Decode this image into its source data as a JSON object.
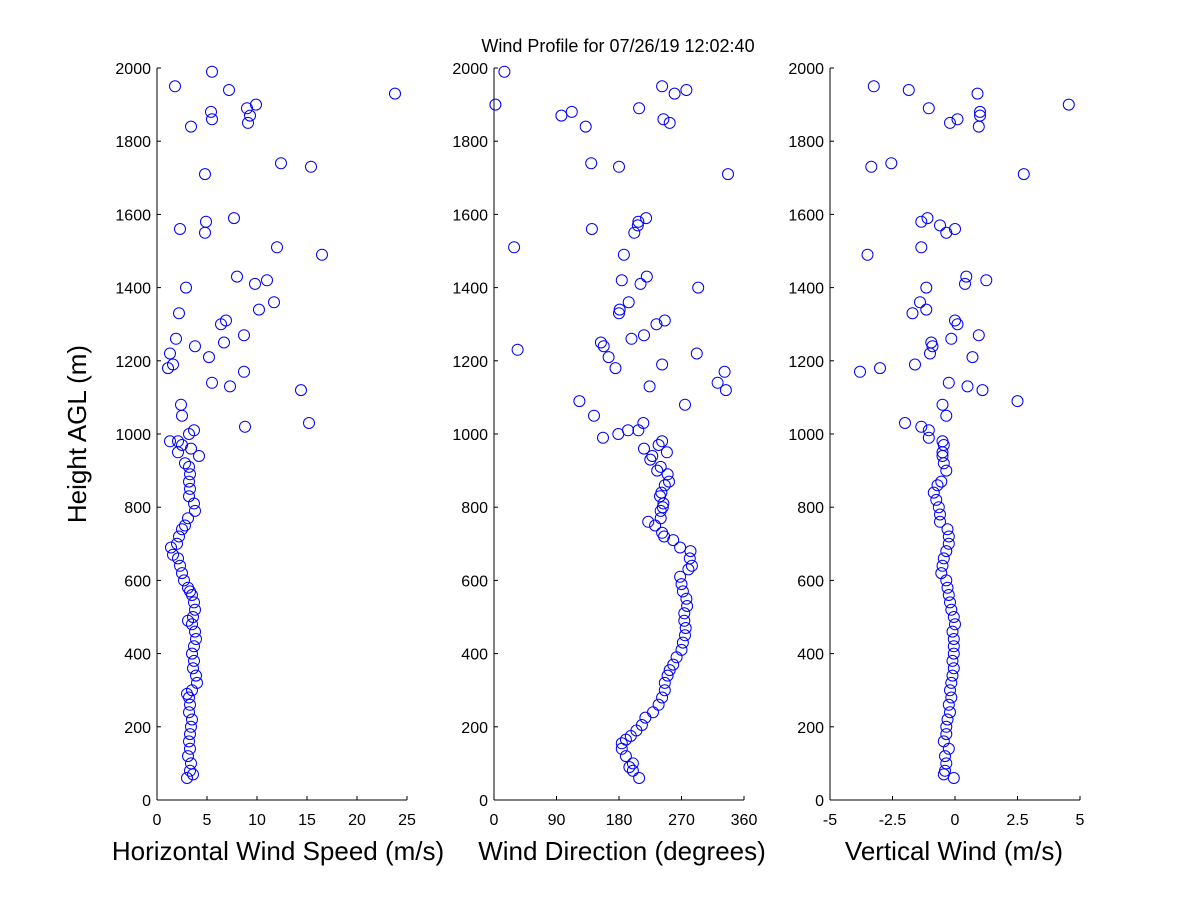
{
  "title": "Wind Profile for  07/26/19 12:02:40",
  "chart_data": [
    {
      "type": "scatter",
      "xlabel": "Horizontal Wind Speed (m/s)",
      "ylabel": "Height AGL (m)",
      "xlim": [
        0,
        25
      ],
      "ylim": [
        0,
        2000
      ],
      "xticks": [
        "0",
        "5",
        "10",
        "15",
        "20",
        "25"
      ],
      "yticks": [
        "0",
        "200",
        "400",
        "600",
        "800",
        "1000",
        "1200",
        "1400",
        "1600",
        "1800",
        "2000"
      ],
      "grid": false,
      "points": [
        [
          3.0,
          60
        ],
        [
          3.6,
          70
        ],
        [
          3.3,
          80
        ],
        [
          3.4,
          100
        ],
        [
          3.1,
          120
        ],
        [
          3.3,
          140
        ],
        [
          3.2,
          160
        ],
        [
          3.3,
          180
        ],
        [
          3.4,
          200
        ],
        [
          3.5,
          220
        ],
        [
          3.2,
          240
        ],
        [
          3.3,
          260
        ],
        [
          3.2,
          280
        ],
        [
          3.0,
          290
        ],
        [
          3.5,
          300
        ],
        [
          4.0,
          320
        ],
        [
          3.9,
          340
        ],
        [
          3.6,
          360
        ],
        [
          3.7,
          380
        ],
        [
          3.5,
          400
        ],
        [
          3.7,
          420
        ],
        [
          3.9,
          440
        ],
        [
          3.8,
          460
        ],
        [
          3.5,
          480
        ],
        [
          3.1,
          490
        ],
        [
          3.6,
          500
        ],
        [
          3.8,
          520
        ],
        [
          3.7,
          540
        ],
        [
          3.5,
          560
        ],
        [
          3.3,
          570
        ],
        [
          3.1,
          580
        ],
        [
          2.7,
          600
        ],
        [
          2.5,
          620
        ],
        [
          2.3,
          640
        ],
        [
          2.1,
          660
        ],
        [
          1.6,
          670
        ],
        [
          1.4,
          690
        ],
        [
          2.0,
          700
        ],
        [
          2.2,
          720
        ],
        [
          2.5,
          740
        ],
        [
          2.8,
          750
        ],
        [
          3.1,
          770
        ],
        [
          3.8,
          790
        ],
        [
          3.7,
          810
        ],
        [
          3.2,
          830
        ],
        [
          3.3,
          850
        ],
        [
          3.2,
          870
        ],
        [
          3.3,
          890
        ],
        [
          3.2,
          910
        ],
        [
          2.8,
          920
        ],
        [
          4.2,
          940
        ],
        [
          2.1,
          950
        ],
        [
          3.4,
          960
        ],
        [
          2.5,
          970
        ],
        [
          2.1,
          980
        ],
        [
          1.3,
          980
        ],
        [
          3.2,
          1000
        ],
        [
          3.7,
          1010
        ],
        [
          8.8,
          1020
        ],
        [
          15.2,
          1030
        ],
        [
          2.5,
          1050
        ],
        [
          2.4,
          1080
        ],
        [
          14.4,
          1120
        ],
        [
          5.5,
          1140
        ],
        [
          7.3,
          1130
        ],
        [
          8.7,
          1170
        ],
        [
          1.1,
          1180
        ],
        [
          1.6,
          1190
        ],
        [
          5.2,
          1210
        ],
        [
          1.3,
          1220
        ],
        [
          3.8,
          1240
        ],
        [
          6.7,
          1250
        ],
        [
          1.9,
          1260
        ],
        [
          8.7,
          1270
        ],
        [
          6.9,
          1310
        ],
        [
          6.4,
          1300
        ],
        [
          2.2,
          1330
        ],
        [
          10.2,
          1340
        ],
        [
          11.7,
          1360
        ],
        [
          9.8,
          1410
        ],
        [
          11.0,
          1420
        ],
        [
          2.9,
          1400
        ],
        [
          8.0,
          1430
        ],
        [
          16.5,
          1490
        ],
        [
          12.0,
          1510
        ],
        [
          4.8,
          1550
        ],
        [
          2.3,
          1560
        ],
        [
          4.9,
          1580
        ],
        [
          7.7,
          1590
        ],
        [
          4.8,
          1710
        ],
        [
          15.4,
          1730
        ],
        [
          12.4,
          1740
        ],
        [
          3.4,
          1840
        ],
        [
          9.1,
          1850
        ],
        [
          5.5,
          1860
        ],
        [
          9.3,
          1870
        ],
        [
          5.4,
          1880
        ],
        [
          9.0,
          1890
        ],
        [
          9.9,
          1900
        ],
        [
          23.8,
          1930
        ],
        [
          7.2,
          1940
        ],
        [
          1.8,
          1950
        ],
        [
          5.5,
          1990
        ]
      ]
    },
    {
      "type": "scatter",
      "xlabel": "Wind Direction (degrees)",
      "ylabel": "",
      "xlim": [
        0,
        360
      ],
      "ylim": [
        0,
        2000
      ],
      "xticks": [
        "0",
        "90",
        "180",
        "270",
        "360"
      ],
      "yticks": [
        "0",
        "200",
        "400",
        "600",
        "800",
        "1000",
        "1200",
        "1400",
        "1600",
        "1800",
        "2000"
      ],
      "grid": false,
      "points": [
        [
          209,
          60
        ],
        [
          200,
          80
        ],
        [
          195,
          90
        ],
        [
          200,
          100
        ],
        [
          190,
          120
        ],
        [
          184,
          140
        ],
        [
          184,
          155
        ],
        [
          190,
          165
        ],
        [
          197,
          175
        ],
        [
          205,
          190
        ],
        [
          213,
          205
        ],
        [
          218,
          225
        ],
        [
          229,
          240
        ],
        [
          237,
          260
        ],
        [
          242,
          280
        ],
        [
          246,
          300
        ],
        [
          246,
          320
        ],
        [
          250,
          340
        ],
        [
          253,
          355
        ],
        [
          258,
          370
        ],
        [
          263,
          390
        ],
        [
          270,
          410
        ],
        [
          272,
          430
        ],
        [
          275,
          450
        ],
        [
          276,
          470
        ],
        [
          274,
          490
        ],
        [
          274,
          510
        ],
        [
          278,
          530
        ],
        [
          277,
          550
        ],
        [
          272,
          570
        ],
        [
          270,
          590
        ],
        [
          268,
          610
        ],
        [
          280,
          630
        ],
        [
          285,
          640
        ],
        [
          282,
          660
        ],
        [
          283,
          680
        ],
        [
          268,
          690
        ],
        [
          258,
          710
        ],
        [
          245,
          720
        ],
        [
          242,
          730
        ],
        [
          232,
          750
        ],
        [
          222,
          760
        ],
        [
          240,
          770
        ],
        [
          240,
          790
        ],
        [
          243,
          800
        ],
        [
          244,
          810
        ],
        [
          239,
          830
        ],
        [
          241,
          840
        ],
        [
          246,
          860
        ],
        [
          252,
          870
        ],
        [
          250,
          890
        ],
        [
          235,
          900
        ],
        [
          240,
          910
        ],
        [
          225,
          930
        ],
        [
          249,
          950
        ],
        [
          228,
          940
        ],
        [
          216,
          960
        ],
        [
          237,
          970
        ],
        [
          242,
          980
        ],
        [
          157,
          990
        ],
        [
          179,
          1000
        ],
        [
          193,
          1010
        ],
        [
          208,
          1010
        ],
        [
          215,
          1030
        ],
        [
          144,
          1050
        ],
        [
          123,
          1090
        ],
        [
          275,
          1080
        ],
        [
          224,
          1130
        ],
        [
          322,
          1140
        ],
        [
          334,
          1120
        ],
        [
          332,
          1170
        ],
        [
          175,
          1180
        ],
        [
          242,
          1190
        ],
        [
          165,
          1210
        ],
        [
          292,
          1220
        ],
        [
          34,
          1230
        ],
        [
          158,
          1240
        ],
        [
          154,
          1250
        ],
        [
          198,
          1260
        ],
        [
          216,
          1270
        ],
        [
          246,
          1310
        ],
        [
          234,
          1300
        ],
        [
          180,
          1330
        ],
        [
          181,
          1340
        ],
        [
          194,
          1360
        ],
        [
          294,
          1400
        ],
        [
          211,
          1410
        ],
        [
          184,
          1420
        ],
        [
          220,
          1430
        ],
        [
          187,
          1490
        ],
        [
          29,
          1510
        ],
        [
          202,
          1550
        ],
        [
          141,
          1560
        ],
        [
          207,
          1570
        ],
        [
          208,
          1580
        ],
        [
          219,
          1590
        ],
        [
          337,
          1710
        ],
        [
          140,
          1740
        ],
        [
          180,
          1730
        ],
        [
          132,
          1840
        ],
        [
          253,
          1850
        ],
        [
          244,
          1860
        ],
        [
          97,
          1870
        ],
        [
          112,
          1880
        ],
        [
          209,
          1890
        ],
        [
          2,
          1900
        ],
        [
          260,
          1930
        ],
        [
          277,
          1940
        ],
        [
          242,
          1950
        ],
        [
          15,
          1990
        ]
      ]
    },
    {
      "type": "scatter",
      "xlabel": "Vertical Wind (m/s)",
      "ylabel": "",
      "xlim": [
        -5,
        5
      ],
      "ylim": [
        0,
        2000
      ],
      "xticks": [
        "-5",
        "-2.5",
        "0",
        "2.5",
        "5"
      ],
      "yticks": [
        "0",
        "200",
        "400",
        "600",
        "800",
        "1000",
        "1200",
        "1400",
        "1600",
        "1800",
        "2000"
      ],
      "grid": false,
      "points": [
        [
          -0.05,
          60
        ],
        [
          -0.45,
          70
        ],
        [
          -0.4,
          80
        ],
        [
          -0.35,
          100
        ],
        [
          -0.4,
          120
        ],
        [
          -0.25,
          140
        ],
        [
          -0.45,
          160
        ],
        [
          -0.35,
          180
        ],
        [
          -0.35,
          200
        ],
        [
          -0.3,
          220
        ],
        [
          -0.2,
          240
        ],
        [
          -0.25,
          260
        ],
        [
          -0.15,
          280
        ],
        [
          -0.2,
          300
        ],
        [
          -0.15,
          320
        ],
        [
          -0.1,
          340
        ],
        [
          -0.05,
          360
        ],
        [
          -0.1,
          380
        ],
        [
          -0.05,
          400
        ],
        [
          -0.05,
          420
        ],
        [
          -0.05,
          440
        ],
        [
          -0.1,
          460
        ],
        [
          0.0,
          480
        ],
        [
          -0.05,
          500
        ],
        [
          -0.15,
          520
        ],
        [
          -0.2,
          540
        ],
        [
          -0.25,
          560
        ],
        [
          -0.3,
          580
        ],
        [
          -0.35,
          600
        ],
        [
          -0.55,
          620
        ],
        [
          -0.5,
          640
        ],
        [
          -0.45,
          660
        ],
        [
          -0.35,
          680
        ],
        [
          -0.25,
          700
        ],
        [
          -0.25,
          720
        ],
        [
          -0.3,
          740
        ],
        [
          -0.6,
          760
        ],
        [
          -0.6,
          780
        ],
        [
          -0.65,
          800
        ],
        [
          -0.75,
          820
        ],
        [
          -0.85,
          840
        ],
        [
          -0.7,
          860
        ],
        [
          -0.55,
          870
        ],
        [
          -0.35,
          900
        ],
        [
          -0.45,
          920
        ],
        [
          -0.5,
          940
        ],
        [
          -0.5,
          950
        ],
        [
          -0.45,
          970
        ],
        [
          -0.5,
          980
        ],
        [
          -1.05,
          990
        ],
        [
          -1.05,
          1010
        ],
        [
          -1.35,
          1020
        ],
        [
          -2.0,
          1030
        ],
        [
          -0.35,
          1050
        ],
        [
          -0.5,
          1080
        ],
        [
          2.5,
          1090
        ],
        [
          0.5,
          1130
        ],
        [
          1.1,
          1120
        ],
        [
          -0.25,
          1140
        ],
        [
          -3.8,
          1170
        ],
        [
          -3.0,
          1180
        ],
        [
          -1.6,
          1190
        ],
        [
          0.7,
          1210
        ],
        [
          -1.0,
          1220
        ],
        [
          -0.95,
          1250
        ],
        [
          -0.9,
          1240
        ],
        [
          -0.15,
          1260
        ],
        [
          0.95,
          1270
        ],
        [
          0.0,
          1310
        ],
        [
          0.1,
          1300
        ],
        [
          -1.7,
          1330
        ],
        [
          -1.15,
          1340
        ],
        [
          -1.4,
          1360
        ],
        [
          -1.15,
          1400
        ],
        [
          0.4,
          1410
        ],
        [
          0.45,
          1430
        ],
        [
          1.25,
          1420
        ],
        [
          -3.5,
          1490
        ],
        [
          -1.35,
          1510
        ],
        [
          -0.35,
          1550
        ],
        [
          -0.6,
          1570
        ],
        [
          0.0,
          1560
        ],
        [
          -1.35,
          1580
        ],
        [
          -1.1,
          1590
        ],
        [
          2.75,
          1710
        ],
        [
          -3.35,
          1730
        ],
        [
          -2.55,
          1740
        ],
        [
          0.95,
          1840
        ],
        [
          -0.2,
          1850
        ],
        [
          0.1,
          1860
        ],
        [
          1.0,
          1870
        ],
        [
          1.0,
          1880
        ],
        [
          -1.05,
          1890
        ],
        [
          4.55,
          1900
        ],
        [
          0.9,
          1930
        ],
        [
          -1.85,
          1940
        ],
        [
          -3.25,
          1950
        ]
      ]
    }
  ]
}
